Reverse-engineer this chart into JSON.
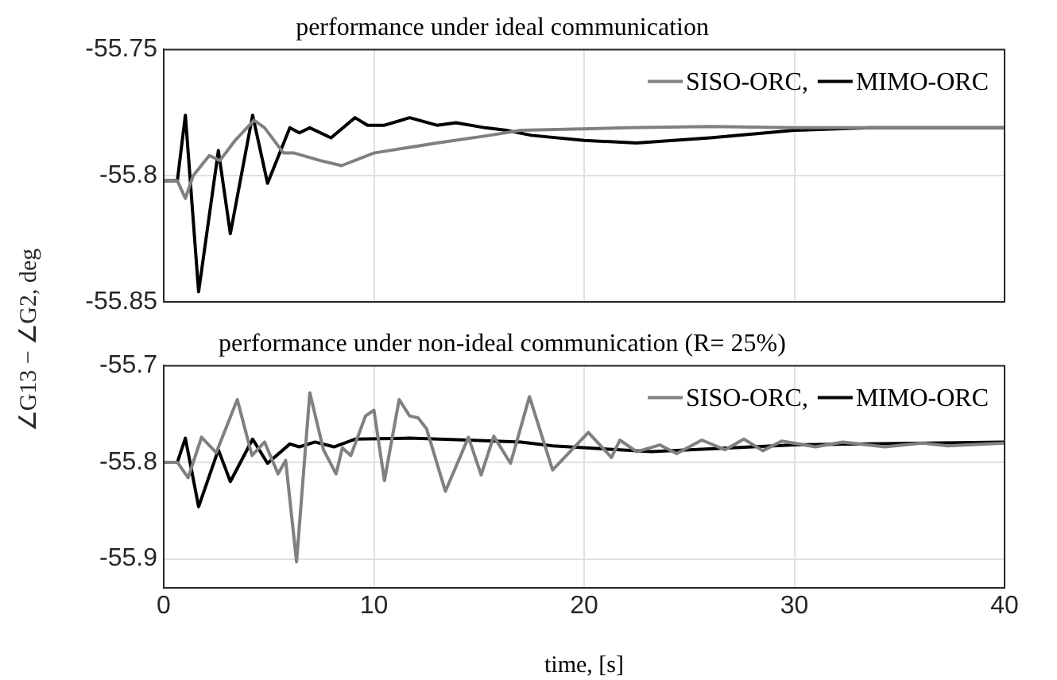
{
  "chart_data": [
    {
      "type": "line",
      "title": "performance under ideal communication",
      "ylabel": "∠G13 − ∠G2, deg",
      "xlim": [
        0,
        40
      ],
      "xticks": [
        0,
        10,
        20,
        30,
        40
      ],
      "ylim": [
        -55.85,
        -55.75
      ],
      "yticks": [
        -55.75,
        -55.8,
        -55.85
      ],
      "grid": true,
      "legend": "top right",
      "tick_labels": "y",
      "marker": "none",
      "line_style": "solid",
      "series": [
        {
          "name": "SISO-ORC,",
          "color": "#808080",
          "x": [
            0,
            0.65,
            1.03,
            1.4,
            2.17,
            2.67,
            3.4,
            4.3,
            4.8,
            5.7,
            6.2,
            7.45,
            8.46,
            10,
            13,
            15.5,
            17,
            22.1,
            26,
            30,
            35,
            40
          ],
          "values": [
            -55.802,
            -55.802,
            -55.809,
            -55.8,
            -55.792,
            -55.794,
            -55.786,
            -55.778,
            -55.781,
            -55.791,
            -55.791,
            -55.794,
            -55.796,
            -55.791,
            -55.787,
            -55.784,
            -55.782,
            -55.781,
            -55.7805,
            -55.781,
            -55.781,
            -55.781
          ]
        },
        {
          "name": "MIMO-ORC",
          "color": "#000000",
          "x": [
            0,
            0.65,
            1.03,
            1.66,
            2.6,
            3.17,
            4.23,
            4.94,
            6,
            6.45,
            6.95,
            7.96,
            9.1,
            9.7,
            10.5,
            11.7,
            13,
            13.9,
            15.3,
            16.3,
            17.5,
            20,
            22.5,
            26,
            30,
            33.6,
            40
          ],
          "values": [
            -55.802,
            -55.802,
            -55.776,
            -55.846,
            -55.79,
            -55.823,
            -55.776,
            -55.803,
            -55.781,
            -55.783,
            -55.781,
            -55.785,
            -55.777,
            -55.78,
            -55.78,
            -55.777,
            -55.78,
            -55.779,
            -55.781,
            -55.782,
            -55.784,
            -55.786,
            -55.787,
            -55.785,
            -55.782,
            -55.781,
            -55.781
          ]
        }
      ]
    },
    {
      "type": "line",
      "title": "performance under non-ideal communication (R= 25%)",
      "xlabel": "time, [s]",
      "xlim": [
        0,
        40
      ],
      "xticks": [
        0,
        10,
        20,
        30,
        40
      ],
      "ylim": [
        -55.93,
        -55.7
      ],
      "yticks": [
        -55.7,
        -55.8,
        -55.9
      ],
      "grid": true,
      "legend": "top right",
      "marker": "none",
      "line_style": "solid",
      "series": [
        {
          "name": "SISO-ORC,",
          "color": "#808080",
          "x": [
            0,
            0.65,
            1.16,
            1.8,
            2.5,
            3.5,
            4.2,
            4.8,
            5.44,
            5.8,
            6.32,
            6.95,
            7.6,
            8.2,
            8.5,
            8.9,
            9.6,
            10,
            10.5,
            11.2,
            11.7,
            12.1,
            12.5,
            13.4,
            14.5,
            15.1,
            15.7,
            16.5,
            17.4,
            18.5,
            20.2,
            21.3,
            21.7,
            22.5,
            23.6,
            24.4,
            25.6,
            26.7,
            27.6,
            28.5,
            29.4,
            31,
            32.3,
            34.3,
            36.1,
            37.3,
            40
          ],
          "values": [
            -55.8,
            -55.8,
            -55.816,
            -55.774,
            -55.79,
            -55.735,
            -55.793,
            -55.779,
            -55.812,
            -55.798,
            -55.903,
            -55.728,
            -55.787,
            -55.812,
            -55.785,
            -55.793,
            -55.752,
            -55.746,
            -55.819,
            -55.735,
            -55.752,
            -55.754,
            -55.765,
            -55.83,
            -55.774,
            -55.813,
            -55.773,
            -55.801,
            -55.732,
            -55.808,
            -55.769,
            -55.795,
            -55.777,
            -55.789,
            -55.782,
            -55.791,
            -55.777,
            -55.787,
            -55.776,
            -55.788,
            -55.778,
            -55.784,
            -55.779,
            -55.784,
            -55.78,
            -55.783,
            -55.78
          ]
        },
        {
          "name": "MIMO-ORC",
          "color": "#000000",
          "x": [
            0,
            0.65,
            1.03,
            1.66,
            2.6,
            3.17,
            4.23,
            4.94,
            6,
            6.45,
            7.2,
            8.1,
            9.1,
            11.7,
            14.5,
            17,
            18.5,
            20.9,
            23.2,
            30,
            40
          ],
          "values": [
            -55.8,
            -55.8,
            -55.775,
            -55.846,
            -55.787,
            -55.82,
            -55.776,
            -55.801,
            -55.781,
            -55.784,
            -55.779,
            -55.784,
            -55.776,
            -55.775,
            -55.777,
            -55.779,
            -55.783,
            -55.786,
            -55.789,
            -55.782,
            -55.779
          ]
        }
      ]
    }
  ]
}
